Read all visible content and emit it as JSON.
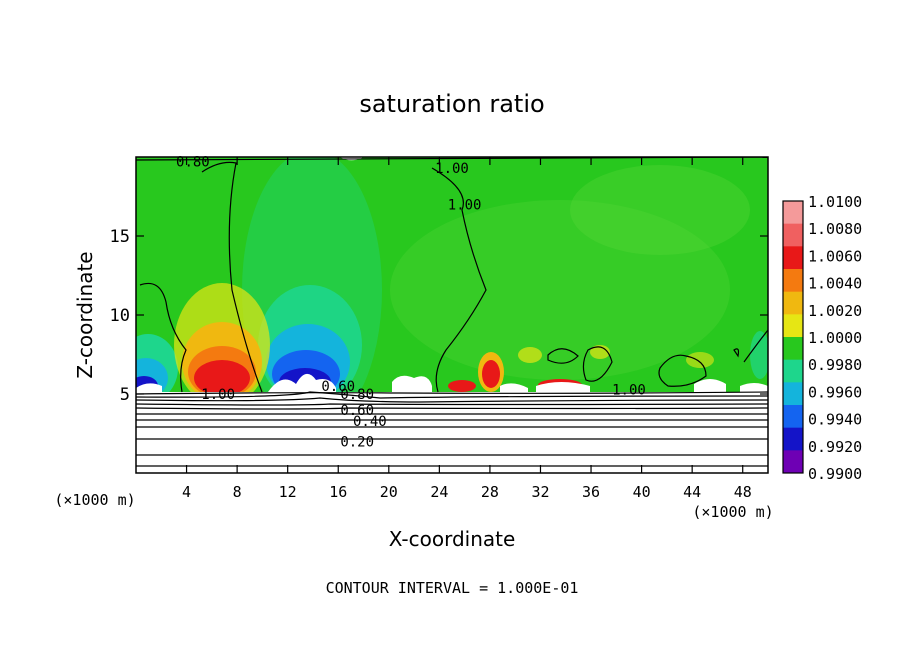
{
  "chart_data": {
    "type": "heatmap",
    "title": "saturation ratio",
    "xlabel": "X-coordinate",
    "ylabel": "Z-coordinate",
    "x_unit_left": "(×1000 m)",
    "x_unit_right": "(×1000 m)",
    "xlim": [
      0,
      50
    ],
    "ylim": [
      0,
      20
    ],
    "xticks": [
      4,
      8,
      12,
      16,
      20,
      24,
      28,
      32,
      36,
      40,
      44,
      48
    ],
    "yticks": [
      5,
      10,
      15
    ],
    "footer": "CONTOUR INTERVAL = 1.000E-01",
    "colorbar": {
      "levels": [
        "1.0100",
        "1.0080",
        "1.0060",
        "1.0040",
        "1.0020",
        "1.0000",
        "0.9980",
        "0.9960",
        "0.9940",
        "0.9920",
        "0.9900"
      ],
      "colors": [
        "#f49a9a",
        "#f06060",
        "#e81818",
        "#f47a10",
        "#f0b810",
        "#e6e614",
        "#28c81e",
        "#1ed68c",
        "#14b4dc",
        "#1464f0",
        "#1414c8",
        "#6e00b4"
      ]
    },
    "contour_labels": [
      {
        "text": "0.80",
        "x": 4.5,
        "z": 19.7
      },
      {
        "text": "1.00",
        "x": 25,
        "z": 19.3
      },
      {
        "text": "1.00",
        "x": 26,
        "z": 17
      },
      {
        "text": "1.00",
        "x": 6.5,
        "z": 5.0
      },
      {
        "text": "1.00",
        "x": 39,
        "z": 5.3
      },
      {
        "text": "0.60",
        "x": 16,
        "z": 5.5
      },
      {
        "text": "0.80",
        "x": 17.5,
        "z": 5.0
      },
      {
        "text": "0.60",
        "x": 17.5,
        "z": 4.0
      },
      {
        "text": "0.40",
        "x": 18.5,
        "z": 3.3
      },
      {
        "text": "0.20",
        "x": 17.5,
        "z": 2.0
      }
    ]
  }
}
